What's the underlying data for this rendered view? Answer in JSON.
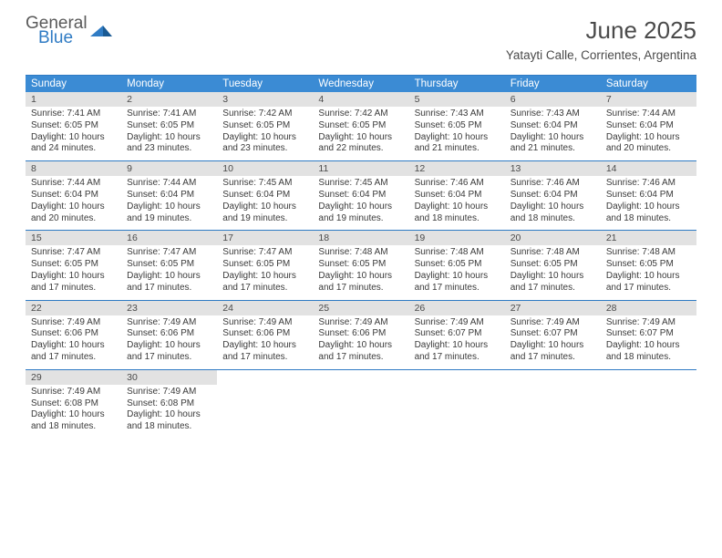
{
  "logo": {
    "text1": "General",
    "text2": "Blue",
    "gray": "#5a5a5a",
    "blue": "#2f7bc4"
  },
  "title": "June 2025",
  "location": "Yatayti Calle, Corrientes, Argentina",
  "colors": {
    "header_bg": "#3b8bd4",
    "header_text": "#ffffff",
    "border": "#2f7bc4",
    "daynum_bg": "#e2e2e2",
    "text": "#3a3a3a"
  },
  "day_names": [
    "Sunday",
    "Monday",
    "Tuesday",
    "Wednesday",
    "Thursday",
    "Friday",
    "Saturday"
  ],
  "days": [
    {
      "n": 1,
      "sr": "7:41 AM",
      "ss": "6:05 PM",
      "dl": "10 hours and 24 minutes."
    },
    {
      "n": 2,
      "sr": "7:41 AM",
      "ss": "6:05 PM",
      "dl": "10 hours and 23 minutes."
    },
    {
      "n": 3,
      "sr": "7:42 AM",
      "ss": "6:05 PM",
      "dl": "10 hours and 23 minutes."
    },
    {
      "n": 4,
      "sr": "7:42 AM",
      "ss": "6:05 PM",
      "dl": "10 hours and 22 minutes."
    },
    {
      "n": 5,
      "sr": "7:43 AM",
      "ss": "6:05 PM",
      "dl": "10 hours and 21 minutes."
    },
    {
      "n": 6,
      "sr": "7:43 AM",
      "ss": "6:04 PM",
      "dl": "10 hours and 21 minutes."
    },
    {
      "n": 7,
      "sr": "7:44 AM",
      "ss": "6:04 PM",
      "dl": "10 hours and 20 minutes."
    },
    {
      "n": 8,
      "sr": "7:44 AM",
      "ss": "6:04 PM",
      "dl": "10 hours and 20 minutes."
    },
    {
      "n": 9,
      "sr": "7:44 AM",
      "ss": "6:04 PM",
      "dl": "10 hours and 19 minutes."
    },
    {
      "n": 10,
      "sr": "7:45 AM",
      "ss": "6:04 PM",
      "dl": "10 hours and 19 minutes."
    },
    {
      "n": 11,
      "sr": "7:45 AM",
      "ss": "6:04 PM",
      "dl": "10 hours and 19 minutes."
    },
    {
      "n": 12,
      "sr": "7:46 AM",
      "ss": "6:04 PM",
      "dl": "10 hours and 18 minutes."
    },
    {
      "n": 13,
      "sr": "7:46 AM",
      "ss": "6:04 PM",
      "dl": "10 hours and 18 minutes."
    },
    {
      "n": 14,
      "sr": "7:46 AM",
      "ss": "6:04 PM",
      "dl": "10 hours and 18 minutes."
    },
    {
      "n": 15,
      "sr": "7:47 AM",
      "ss": "6:05 PM",
      "dl": "10 hours and 17 minutes."
    },
    {
      "n": 16,
      "sr": "7:47 AM",
      "ss": "6:05 PM",
      "dl": "10 hours and 17 minutes."
    },
    {
      "n": 17,
      "sr": "7:47 AM",
      "ss": "6:05 PM",
      "dl": "10 hours and 17 minutes."
    },
    {
      "n": 18,
      "sr": "7:48 AM",
      "ss": "6:05 PM",
      "dl": "10 hours and 17 minutes."
    },
    {
      "n": 19,
      "sr": "7:48 AM",
      "ss": "6:05 PM",
      "dl": "10 hours and 17 minutes."
    },
    {
      "n": 20,
      "sr": "7:48 AM",
      "ss": "6:05 PM",
      "dl": "10 hours and 17 minutes."
    },
    {
      "n": 21,
      "sr": "7:48 AM",
      "ss": "6:05 PM",
      "dl": "10 hours and 17 minutes."
    },
    {
      "n": 22,
      "sr": "7:49 AM",
      "ss": "6:06 PM",
      "dl": "10 hours and 17 minutes."
    },
    {
      "n": 23,
      "sr": "7:49 AM",
      "ss": "6:06 PM",
      "dl": "10 hours and 17 minutes."
    },
    {
      "n": 24,
      "sr": "7:49 AM",
      "ss": "6:06 PM",
      "dl": "10 hours and 17 minutes."
    },
    {
      "n": 25,
      "sr": "7:49 AM",
      "ss": "6:06 PM",
      "dl": "10 hours and 17 minutes."
    },
    {
      "n": 26,
      "sr": "7:49 AM",
      "ss": "6:07 PM",
      "dl": "10 hours and 17 minutes."
    },
    {
      "n": 27,
      "sr": "7:49 AM",
      "ss": "6:07 PM",
      "dl": "10 hours and 17 minutes."
    },
    {
      "n": 28,
      "sr": "7:49 AM",
      "ss": "6:07 PM",
      "dl": "10 hours and 18 minutes."
    },
    {
      "n": 29,
      "sr": "7:49 AM",
      "ss": "6:08 PM",
      "dl": "10 hours and 18 minutes."
    },
    {
      "n": 30,
      "sr": "7:49 AM",
      "ss": "6:08 PM",
      "dl": "10 hours and 18 minutes."
    }
  ],
  "labels": {
    "sunrise": "Sunrise:",
    "sunset": "Sunset:",
    "daylight": "Daylight:"
  }
}
